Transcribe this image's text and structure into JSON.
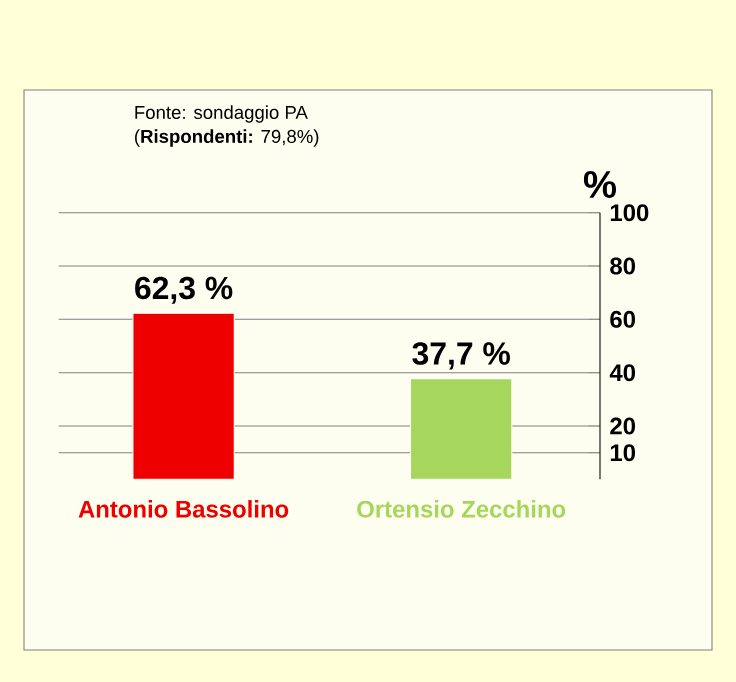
{
  "chart_data": {
    "type": "bar",
    "categories": [
      "Antonio Bassolino",
      "Ortensio Zecchino"
    ],
    "values": [
      62.3,
      37.7
    ],
    "colors": [
      "#ee0000",
      "#a6d65c"
    ],
    "value_labels": [
      "62,3 %",
      "37,7 %"
    ],
    "ylabel": "%",
    "ylim": [
      0,
      100
    ],
    "yticks": [
      10,
      20,
      40,
      60,
      80,
      100
    ],
    "grid": "y",
    "annotations": [
      "Fonte: sondaggio PA",
      "(**Rispondenti:** 79,8%)"
    ]
  }
}
